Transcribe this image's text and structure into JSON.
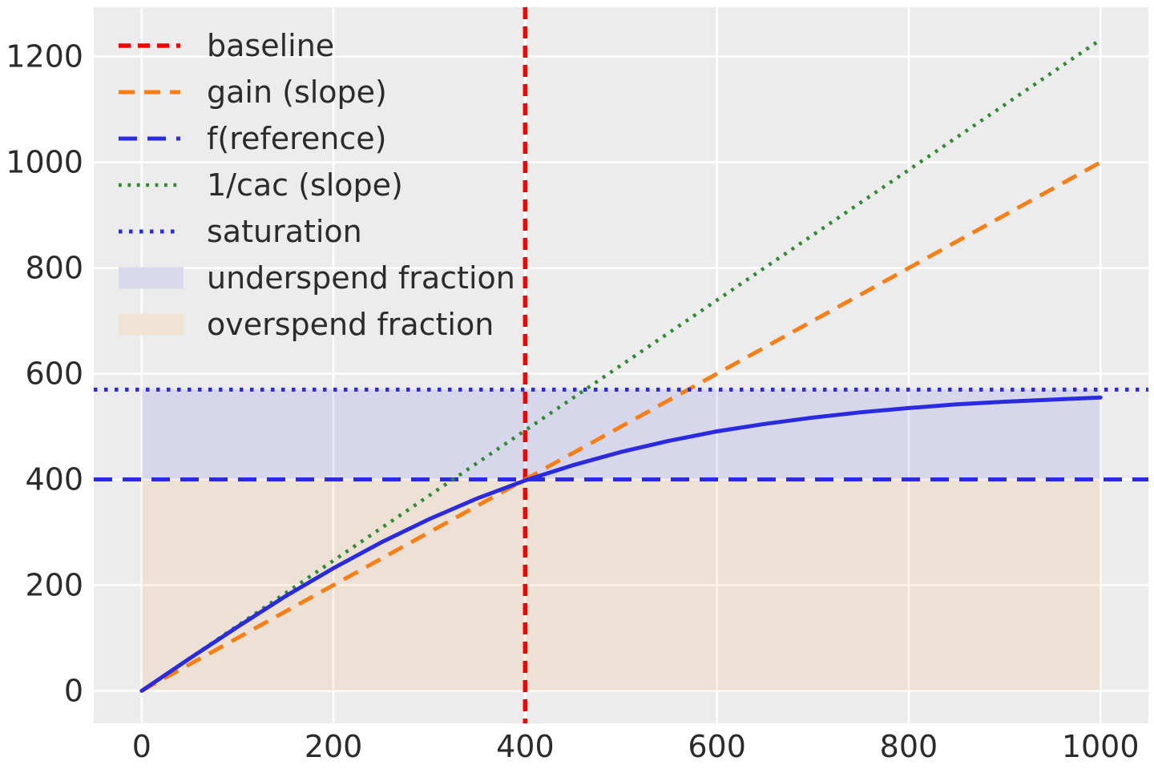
{
  "figure": {
    "background": "#ffffff"
  },
  "chart_data": {
    "type": "line",
    "title": "",
    "xlabel": "",
    "ylabel": "",
    "xlim": [
      -50,
      1050
    ],
    "ylim": [
      -61.6,
      1293.6
    ],
    "x_tick_values": [
      0,
      200,
      400,
      600,
      800,
      1000
    ],
    "x_tick_labels": [
      "0",
      "200",
      "400",
      "600",
      "800",
      "1000"
    ],
    "y_tick_values": [
      0,
      200,
      400,
      600,
      800,
      1000,
      1200
    ],
    "y_tick_labels": [
      "0",
      "200",
      "400",
      "600",
      "800",
      "1000",
      "1200"
    ],
    "grid": true,
    "plot_background": "#ececec",
    "grid_color": "#ffffff",
    "tick_color": "#2b2b2b",
    "fills": [
      {
        "key": "underspend",
        "label": "underspend fraction",
        "x": [
          0,
          1000
        ],
        "y": [
          400,
          570
        ],
        "color": "rgba(42,42,224,0.11)",
        "swatch_color": "#d9d9ee"
      },
      {
        "key": "overspend",
        "label": "overspend fraction",
        "x": [
          0,
          1000
        ],
        "y": [
          0,
          400
        ],
        "color": "rgba(249,127,22,0.10)",
        "swatch_color": "#f0e3d6"
      }
    ],
    "series": [
      {
        "key": "baseline",
        "label": "baseline",
        "kind": "vline",
        "x": 400,
        "color": "#f80000",
        "dash": [
          15,
          9
        ],
        "width": 5.5,
        "show_in_legend": true
      },
      {
        "key": "gain",
        "label": "gain (slope)",
        "kind": "segment",
        "points": [
          [
            0,
            0
          ],
          [
            1000,
            1000
          ]
        ],
        "color": "#f97e14",
        "dash": [
          20,
          12
        ],
        "width": 5,
        "show_in_legend": true
      },
      {
        "key": "freference",
        "label": "f(reference)",
        "kind": "hline",
        "y": 400,
        "color": "#2a2ae0",
        "dash": [
          23,
          13
        ],
        "width": 5,
        "show_in_legend": true
      },
      {
        "key": "cac",
        "label": "1/cac (slope)",
        "kind": "segment",
        "points": [
          [
            0,
            0
          ],
          [
            1000,
            1232
          ]
        ],
        "color": "#2f8b2f",
        "dash": [
          3.8,
          7.6
        ],
        "width": 4.5,
        "show_in_legend": true
      },
      {
        "key": "saturation",
        "label": "saturation",
        "kind": "hline",
        "y": 570,
        "color": "#2a2ae0",
        "dash": [
          4.5,
          8.5
        ],
        "width": 5,
        "show_in_legend": true
      },
      {
        "key": "response",
        "label": "response curve",
        "kind": "curve",
        "x": [
          0,
          50,
          100,
          150,
          200,
          250,
          300,
          350,
          400,
          450,
          500,
          550,
          600,
          650,
          700,
          750,
          800,
          850,
          900,
          950,
          1000
        ],
        "y": [
          0,
          61,
          121,
          179,
          232,
          281,
          325,
          364,
          398,
          427,
          452,
          473,
          491,
          505,
          517,
          527,
          535,
          542,
          547,
          551,
          555
        ],
        "color": "#2a2ae0",
        "dash": null,
        "width": 5,
        "show_in_legend": false
      }
    ],
    "legend": {
      "position": "upper-left",
      "frame": false,
      "entries": [
        "baseline",
        "gain",
        "freference",
        "cac",
        "saturation",
        "underspend",
        "overspend"
      ]
    }
  }
}
